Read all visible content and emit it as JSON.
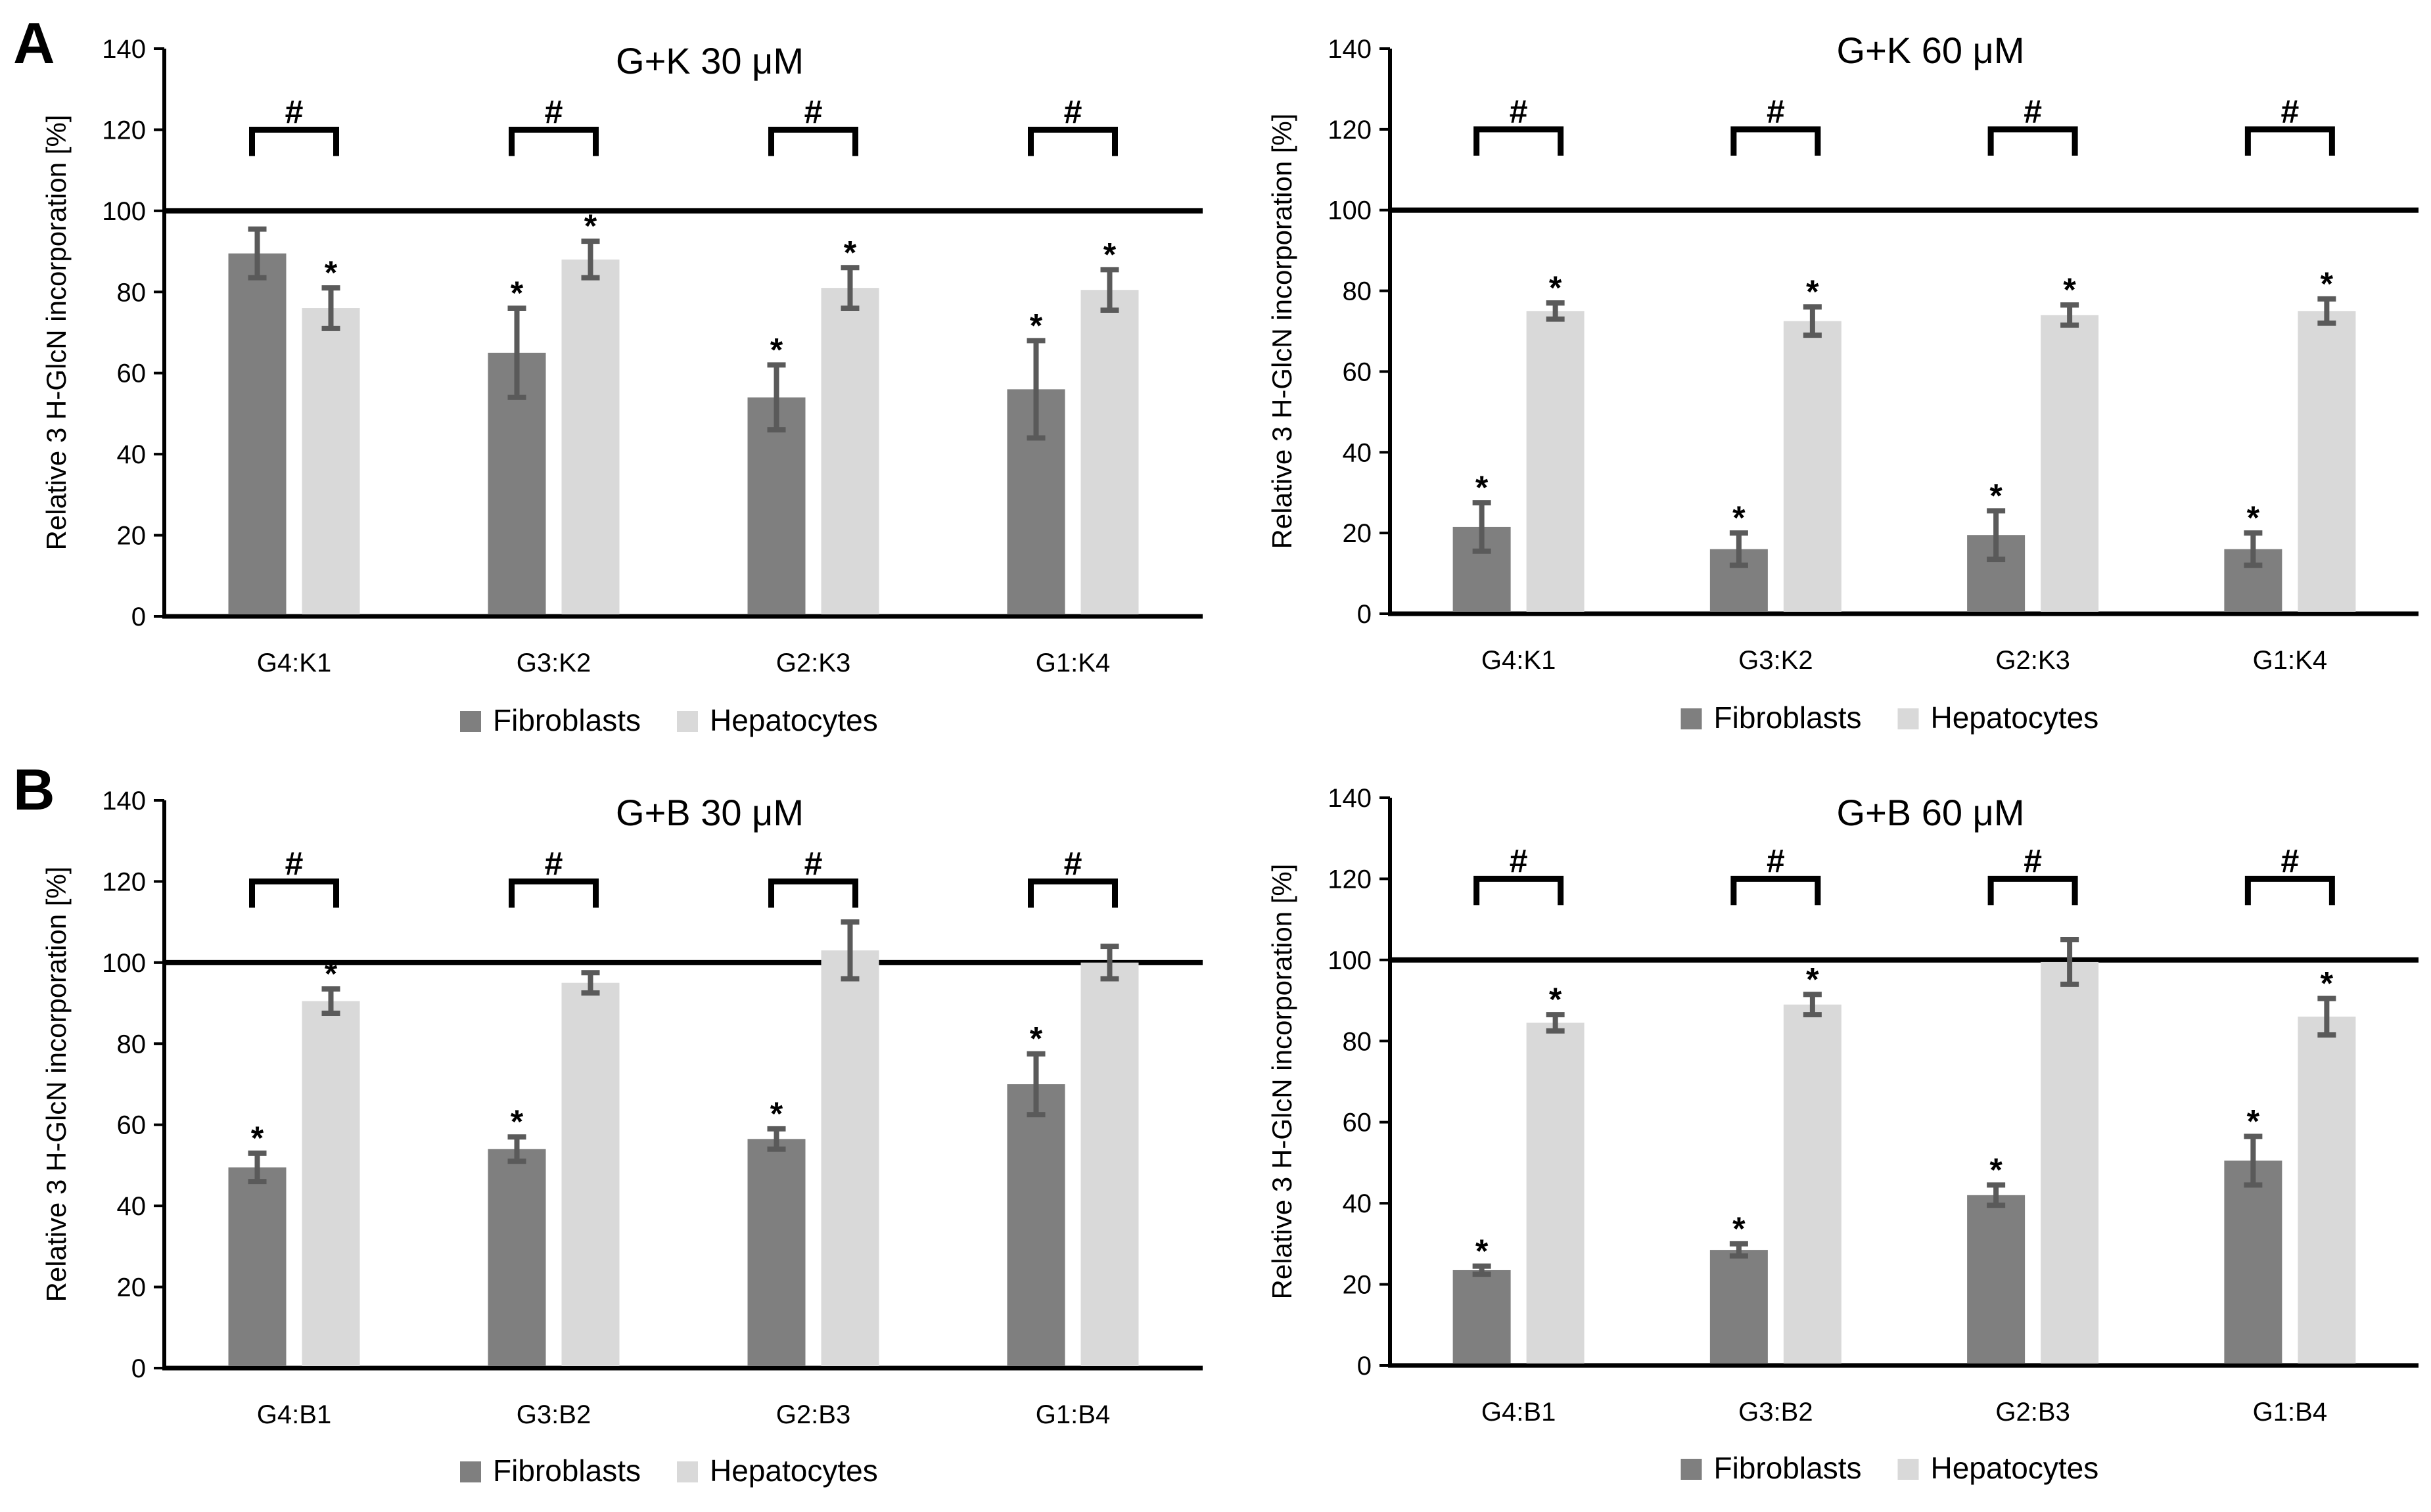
{
  "panel_labels": [
    "A",
    "B"
  ],
  "colors": {
    "fibroblasts": "#7f7f7f",
    "hepatocytes": "#d9d9d9",
    "error_bar": "#5a5a5a",
    "reference": "#000000",
    "text": "#000000"
  },
  "chart_data": [
    {
      "type": "bar",
      "title": "G+K 30 μM",
      "ylabel": "Relative 3 H-GlcN incorporation  [%]",
      "xlabel": "",
      "ylim": [
        0,
        140
      ],
      "yticks": [
        "0",
        "20",
        "40",
        "60",
        "80",
        "100",
        "120",
        "140"
      ],
      "reference_line": 100,
      "categories": [
        "G4:K1",
        "G3:K2",
        "G2:K3",
        "G1:K4"
      ],
      "series": [
        {
          "name": "Fibroblasts",
          "values": [
            89.5,
            65,
            54,
            56
          ],
          "errors": [
            6,
            11,
            8,
            12
          ],
          "significant": [
            false,
            true,
            true,
            true
          ]
        },
        {
          "name": "Hepatocytes",
          "values": [
            76,
            88,
            81,
            80.5
          ],
          "errors": [
            5,
            4.5,
            5,
            5
          ],
          "significant": [
            true,
            true,
            true,
            true
          ]
        }
      ],
      "group_marker": "#",
      "significance_marker": "*",
      "legend": [
        "Fibroblasts",
        "Hepatocytes"
      ],
      "legend_position": "bottom"
    },
    {
      "type": "bar",
      "title": "G+K 60 μM",
      "ylabel": "Relative 3 H-GlcN incorporation  [%]",
      "xlabel": "",
      "ylim": [
        0,
        140
      ],
      "yticks": [
        "0",
        "20",
        "40",
        "60",
        "80",
        "100",
        "120",
        "140"
      ],
      "reference_line": 100,
      "categories": [
        "G4:K1",
        "G3:K2",
        "G2:K3",
        "G1:K4"
      ],
      "series": [
        {
          "name": "Fibroblasts",
          "values": [
            21.5,
            16,
            19.5,
            16
          ],
          "errors": [
            6,
            4,
            6,
            4
          ],
          "significant": [
            true,
            true,
            true,
            true
          ]
        },
        {
          "name": "Hepatocytes",
          "values": [
            75,
            72.5,
            74,
            75
          ],
          "errors": [
            2,
            3.5,
            2.5,
            3
          ],
          "significant": [
            true,
            true,
            true,
            true
          ]
        }
      ],
      "group_marker": "#",
      "significance_marker": "*",
      "legend": [
        "Fibroblasts",
        "Hepatocytes"
      ],
      "legend_position": "bottom"
    },
    {
      "type": "bar",
      "title": "G+B 30 μM",
      "ylabel": "Relative 3 H-GlcN incorporation  [%]",
      "xlabel": "",
      "ylim": [
        0,
        140
      ],
      "yticks": [
        "0",
        "20",
        "40",
        "60",
        "80",
        "100",
        "120",
        "140"
      ],
      "reference_line": 100,
      "categories": [
        "G4:B1",
        "G3:B2",
        "G2:B3",
        "G1:B4"
      ],
      "series": [
        {
          "name": "Fibroblasts",
          "values": [
            49.5,
            54,
            56.5,
            70
          ],
          "errors": [
            3.5,
            3,
            2.5,
            7.5
          ],
          "significant": [
            true,
            true,
            true,
            true
          ]
        },
        {
          "name": "Hepatocytes",
          "values": [
            90.5,
            95,
            103,
            100
          ],
          "errors": [
            3,
            2.5,
            7,
            4
          ],
          "significant": [
            true,
            false,
            false,
            false
          ]
        }
      ],
      "group_marker": "#",
      "significance_marker": "*",
      "legend": [
        "Fibroblasts",
        "Hepatocytes"
      ],
      "legend_position": "bottom"
    },
    {
      "type": "bar",
      "title": "G+B 60 μM",
      "ylabel": "Relative 3 H-GlcN incorporation  [%]",
      "xlabel": "",
      "ylim": [
        0,
        140
      ],
      "yticks": [
        "0",
        "20",
        "40",
        "60",
        "80",
        "100",
        "120",
        "140"
      ],
      "reference_line": 100,
      "categories": [
        "G4:B1",
        "G3:B2",
        "G2:B3",
        "G1:B4"
      ],
      "series": [
        {
          "name": "Fibroblasts",
          "values": [
            23.5,
            28.5,
            42,
            50.5
          ],
          "errors": [
            1,
            1.5,
            2.5,
            6
          ],
          "significant": [
            true,
            true,
            true,
            true
          ]
        },
        {
          "name": "Hepatocytes",
          "values": [
            84.5,
            89,
            99.5,
            86
          ],
          "errors": [
            2,
            2.5,
            5.5,
            4.5
          ],
          "significant": [
            true,
            true,
            false,
            true
          ]
        }
      ],
      "group_marker": "#",
      "significance_marker": "*",
      "legend": [
        "Fibroblasts",
        "Hepatocytes"
      ],
      "legend_position": "bottom"
    }
  ]
}
